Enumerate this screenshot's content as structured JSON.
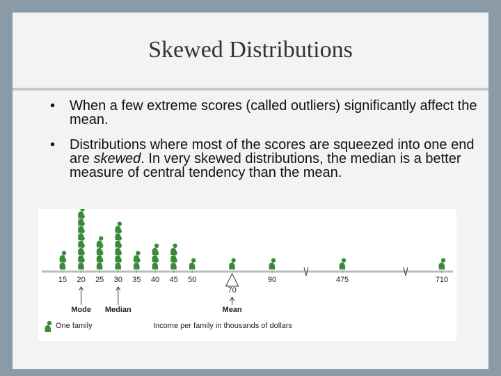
{
  "slide": {
    "title": "Skewed Distributions",
    "bullets": [
      {
        "text": "When a few extreme scores (called outliers) significantly affect the mean."
      },
      {
        "before": "Distributions where most of the scores are squeezed into one end are ",
        "emphasis": "skewed",
        "after": ".  In very skewed distributions, the median is a better measure of central tendency than the mean."
      }
    ],
    "figure": {
      "ticks": [
        15,
        20,
        25,
        30,
        35,
        40,
        45,
        50,
        90,
        475,
        710
      ],
      "counts": [
        2,
        8,
        4,
        6,
        2,
        3,
        3,
        1,
        1,
        1,
        1
      ],
      "mean": 70,
      "mode_label": "Mode",
      "median_label": "Median",
      "mean_label": "Mean",
      "legend": "One family",
      "axis_label": "Income per family in thousands of dollars"
    }
  }
}
